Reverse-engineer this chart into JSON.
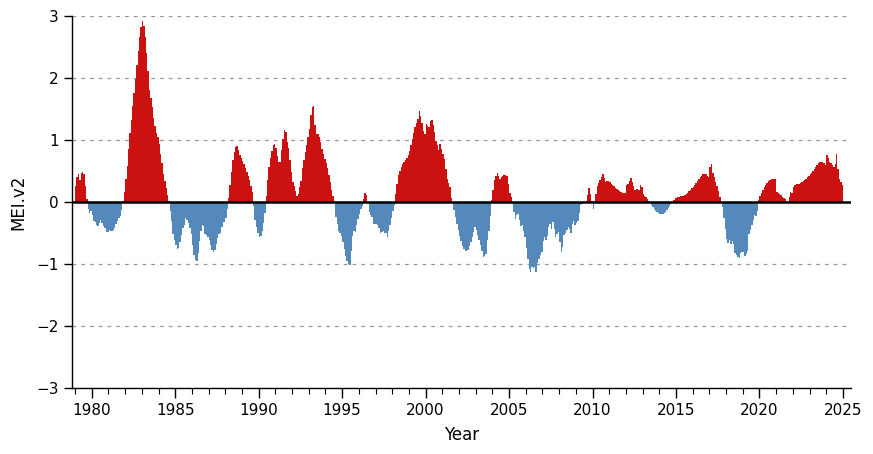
{
  "ylabel": "MEI.v2",
  "xlabel": "Year",
  "ylim": [
    -3.0,
    3.0
  ],
  "xlim": [
    1978.8,
    2025.5
  ],
  "yticks": [
    -3.0,
    -2.0,
    -1.0,
    0.0,
    1.0,
    2.0,
    3.0
  ],
  "xticks": [
    1980,
    1985,
    1990,
    1995,
    2000,
    2005,
    2010,
    2015,
    2020,
    2025
  ],
  "color_positive": "#CC1111",
  "color_negative": "#5588BB",
  "background_color": "#ffffff",
  "start_year": 1979,
  "mei_monthly": [
    0.253,
    0.406,
    0.444,
    0.36,
    0.466,
    0.489,
    0.456,
    0.262,
    0.057,
    -0.106,
    -0.175,
    -0.138,
    -0.21,
    -0.3,
    -0.325,
    -0.371,
    -0.382,
    -0.333,
    -0.29,
    -0.344,
    -0.383,
    -0.421,
    -0.484,
    -0.478,
    -0.45,
    -0.463,
    -0.47,
    -0.455,
    -0.419,
    -0.353,
    -0.3,
    -0.264,
    -0.229,
    -0.135,
    0.019,
    0.159,
    0.373,
    0.573,
    0.854,
    1.107,
    1.32,
    1.545,
    1.762,
    1.982,
    2.205,
    2.428,
    2.651,
    2.824,
    2.912,
    2.833,
    2.655,
    2.401,
    2.105,
    1.808,
    1.669,
    1.524,
    1.359,
    1.22,
    1.11,
    1.045,
    0.932,
    0.78,
    0.628,
    0.452,
    0.338,
    0.228,
    0.118,
    0.01,
    -0.142,
    -0.308,
    -0.521,
    -0.614,
    -0.699,
    -0.755,
    -0.741,
    -0.649,
    -0.524,
    -0.422,
    -0.372,
    -0.263,
    -0.283,
    -0.332,
    -0.421,
    -0.514,
    -0.699,
    -0.855,
    -0.941,
    -0.949,
    -0.824,
    -0.622,
    -0.472,
    -0.363,
    -0.383,
    -0.509,
    -0.535,
    -0.562,
    -0.608,
    -0.685,
    -0.769,
    -0.809,
    -0.771,
    -0.671,
    -0.571,
    -0.513,
    -0.492,
    -0.397,
    -0.318,
    -0.325,
    -0.261,
    -0.118,
    0.059,
    0.27,
    0.487,
    0.675,
    0.81,
    0.892,
    0.9,
    0.836,
    0.76,
    0.706,
    0.664,
    0.617,
    0.555,
    0.486,
    0.419,
    0.347,
    0.265,
    0.164,
    -0.058,
    -0.288,
    -0.409,
    -0.505,
    -0.556,
    -0.546,
    -0.471,
    -0.337,
    -0.171,
    0.099,
    0.348,
    0.558,
    0.713,
    0.825,
    0.924,
    0.934,
    0.874,
    0.747,
    0.64,
    0.637,
    0.832,
    1.013,
    1.152,
    1.132,
    0.967,
    0.875,
    0.677,
    0.49,
    0.319,
    0.251,
    0.175,
    0.094,
    0.124,
    0.239,
    0.332,
    0.547,
    0.672,
    0.8,
    0.926,
    1.042,
    1.172,
    1.4,
    1.526,
    1.542,
    1.238,
    1.097,
    1.1,
    1.05,
    0.963,
    0.861,
    0.77,
    0.693,
    0.622,
    0.541,
    0.437,
    0.317,
    0.196,
    0.091,
    0.013,
    -0.236,
    -0.361,
    -0.473,
    -0.494,
    -0.548,
    -0.637,
    -0.749,
    -0.863,
    -0.951,
    -1.0,
    -1.012,
    -0.791,
    -0.54,
    -0.466,
    -0.475,
    -0.375,
    -0.276,
    -0.188,
    -0.118,
    -0.071,
    0.049,
    0.144,
    0.121,
    -0.019,
    -0.168,
    -0.214,
    -0.246,
    -0.357,
    -0.353,
    -0.351,
    -0.371,
    -0.422,
    -0.499,
    -0.486,
    -0.461,
    -0.502,
    -0.501,
    -0.555,
    -0.473,
    -0.367,
    -0.251,
    -0.138,
    -0.042,
    0.13,
    0.286,
    0.442,
    0.505,
    0.567,
    0.615,
    0.647,
    0.672,
    0.704,
    0.756,
    0.828,
    0.916,
    1.015,
    1.113,
    1.201,
    1.275,
    1.334,
    1.471,
    1.383,
    1.271,
    1.14,
    1.097,
    1.252,
    1.219,
    1.205,
    1.31,
    1.326,
    1.238,
    1.127,
    0.983,
    0.916,
    0.831,
    0.939,
    0.849,
    0.766,
    0.692,
    0.527,
    0.368,
    0.308,
    0.242,
    0.064,
    -0.027,
    -0.131,
    -0.24,
    -0.348,
    -0.451,
    -0.544,
    -0.628,
    -0.701,
    -0.758,
    -0.791,
    -0.795,
    -0.768,
    -0.713,
    -0.638,
    -0.555,
    -0.475,
    -0.407,
    -0.458,
    -0.526,
    -0.607,
    -0.696,
    -0.788,
    -0.878,
    -0.863,
    -0.841,
    -0.61,
    -0.47,
    -0.221,
    0.035,
    0.196,
    0.358,
    0.417,
    0.472,
    0.422,
    0.367,
    0.403,
    0.427,
    0.436,
    0.431,
    0.413,
    0.283,
    0.141,
    0.088,
    -0.025,
    -0.153,
    -0.275,
    -0.207,
    -0.193,
    -0.284,
    -0.378,
    -0.374,
    -0.468,
    -0.558,
    -0.74,
    -0.912,
    -1.073,
    -1.12,
    -1.05,
    -1.061,
    -1.052,
    -1.123,
    -0.978,
    -0.922,
    -0.86,
    -0.797,
    -0.633,
    -0.57,
    -0.608,
    -0.55,
    -0.398,
    -0.357,
    -0.429,
    -0.32,
    -0.431,
    -0.564,
    -0.516,
    -0.481,
    -0.646,
    -0.799,
    -0.728,
    -0.528,
    -0.5,
    -0.452,
    -0.395,
    -0.44,
    -0.491,
    -0.349,
    -0.311,
    -0.375,
    -0.34,
    -0.307,
    -0.177,
    -0.052,
    -0.033,
    -0.021,
    -0.015,
    0.015,
    0.118,
    0.222,
    0.123,
    0.019,
    -0.108,
    0.01,
    0.134,
    0.266,
    0.305,
    0.35,
    0.399,
    0.448,
    0.39,
    0.321,
    0.336,
    0.334,
    0.318,
    0.295,
    0.273,
    0.252,
    0.232,
    0.213,
    0.195,
    0.178,
    0.163,
    0.152,
    0.147,
    0.152,
    0.269,
    0.298,
    0.337,
    0.381,
    0.325,
    0.263,
    0.19,
    0.203,
    0.202,
    0.19,
    0.271,
    0.25,
    0.127,
    0.102,
    0.075,
    0.046,
    0.015,
    -0.017,
    -0.05,
    -0.082,
    -0.113,
    -0.14,
    -0.163,
    -0.18,
    -0.19,
    -0.193,
    -0.188,
    -0.175,
    -0.155,
    -0.128,
    -0.096,
    -0.061,
    -0.026,
    0.008,
    0.036,
    0.058,
    0.072,
    0.081,
    0.087,
    0.091,
    0.096,
    0.104,
    0.116,
    0.132,
    0.152,
    0.174,
    0.197,
    0.221,
    0.246,
    0.273,
    0.303,
    0.335,
    0.368,
    0.4,
    0.426,
    0.444,
    0.45,
    0.444,
    0.426,
    0.398,
    0.561,
    0.615,
    0.461,
    0.399,
    0.33,
    0.253,
    0.171,
    0.086,
    0.0,
    -0.083,
    -0.261,
    -0.433,
    -0.599,
    -0.661,
    -0.619,
    -0.673,
    -0.624,
    -0.672,
    -0.816,
    -0.854,
    -0.884,
    -0.905,
    -0.814,
    -0.812,
    -0.798,
    -0.872,
    -0.834,
    -0.784,
    -0.522,
    -0.45,
    -0.37,
    -0.286,
    -0.201,
    -0.219,
    -0.143,
    0.027,
    0.09,
    0.146,
    0.196,
    0.24,
    0.278,
    0.31,
    0.335,
    0.353,
    0.364,
    0.369,
    0.368,
    0.363,
    0.154,
    0.142,
    0.126,
    0.108,
    0.088,
    0.067,
    0.045,
    0.023,
    0.001,
    0.081,
    0.163,
    0.148,
    0.237,
    0.281,
    0.287,
    0.291,
    0.296,
    0.304,
    0.316,
    0.332,
    0.352,
    0.374,
    0.397,
    0.421,
    0.446,
    0.473,
    0.503,
    0.535,
    0.568,
    0.6,
    0.626,
    0.644,
    0.65,
    0.644,
    0.626,
    0.598,
    0.761,
    0.715,
    0.65,
    0.627,
    0.596,
    0.56,
    0.619,
    0.774,
    0.527,
    0.378,
    0.329,
    0.28
  ]
}
